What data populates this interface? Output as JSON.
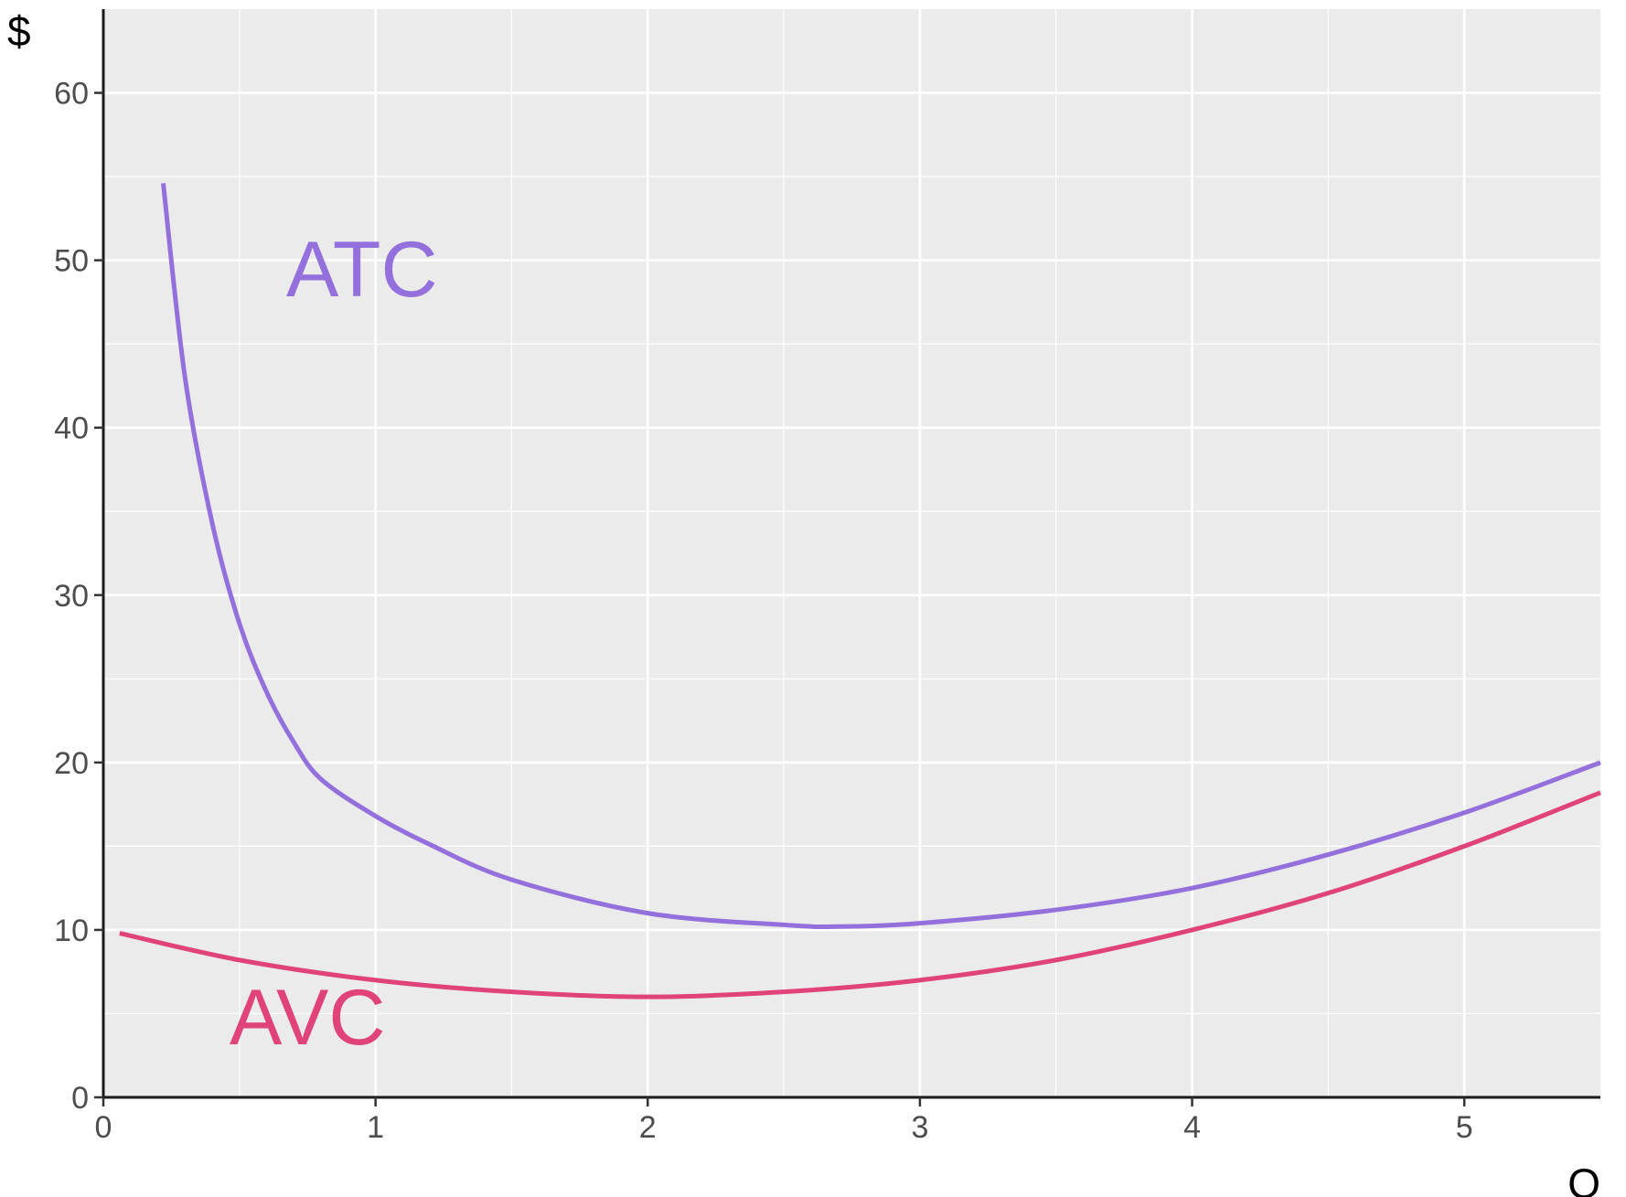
{
  "chart_data": {
    "type": "line",
    "title": "",
    "xlabel": "Q",
    "ylabel": "$",
    "xlim": [
      0,
      5.5
    ],
    "ylim": [
      0,
      65
    ],
    "x_ticks": [
      "0",
      "1",
      "2",
      "3",
      "4",
      "5"
    ],
    "y_ticks": [
      "0",
      "10",
      "20",
      "30",
      "40",
      "50",
      "60"
    ],
    "grid": true,
    "legend": "none",
    "background": "#ebebeb",
    "series": [
      {
        "name": "ATC",
        "color": "#9370db",
        "x": [
          0.22,
          0.3,
          0.4,
          0.5,
          0.6,
          0.7,
          0.8,
          1.0,
          1.2,
          1.5,
          2.0,
          2.5,
          2.7,
          3.0,
          3.5,
          4.0,
          4.5,
          5.0,
          5.5
        ],
        "y": [
          54.6,
          43.0,
          34.3,
          28.3,
          24.2,
          21.2,
          19.0,
          16.8,
          15.1,
          13.0,
          11.0,
          10.3,
          10.2,
          10.4,
          11.2,
          12.5,
          14.5,
          17.0,
          20.0
        ]
      },
      {
        "name": "AVC",
        "color": "#e0427a",
        "x": [
          0.06,
          0.5,
          1.0,
          1.5,
          2.0,
          2.5,
          3.0,
          3.5,
          4.0,
          4.5,
          5.0,
          5.5
        ],
        "y": [
          9.8,
          8.2,
          7.0,
          6.3,
          6.0,
          6.3,
          7.0,
          8.2,
          10.0,
          12.2,
          15.0,
          18.2
        ]
      }
    ],
    "annotations": [
      {
        "text": "ATC",
        "x": 0.95,
        "y": 49.5,
        "color": "#9370db"
      },
      {
        "text": "AVC",
        "x": 0.75,
        "y": 4.8,
        "color": "#e0427a"
      }
    ]
  }
}
